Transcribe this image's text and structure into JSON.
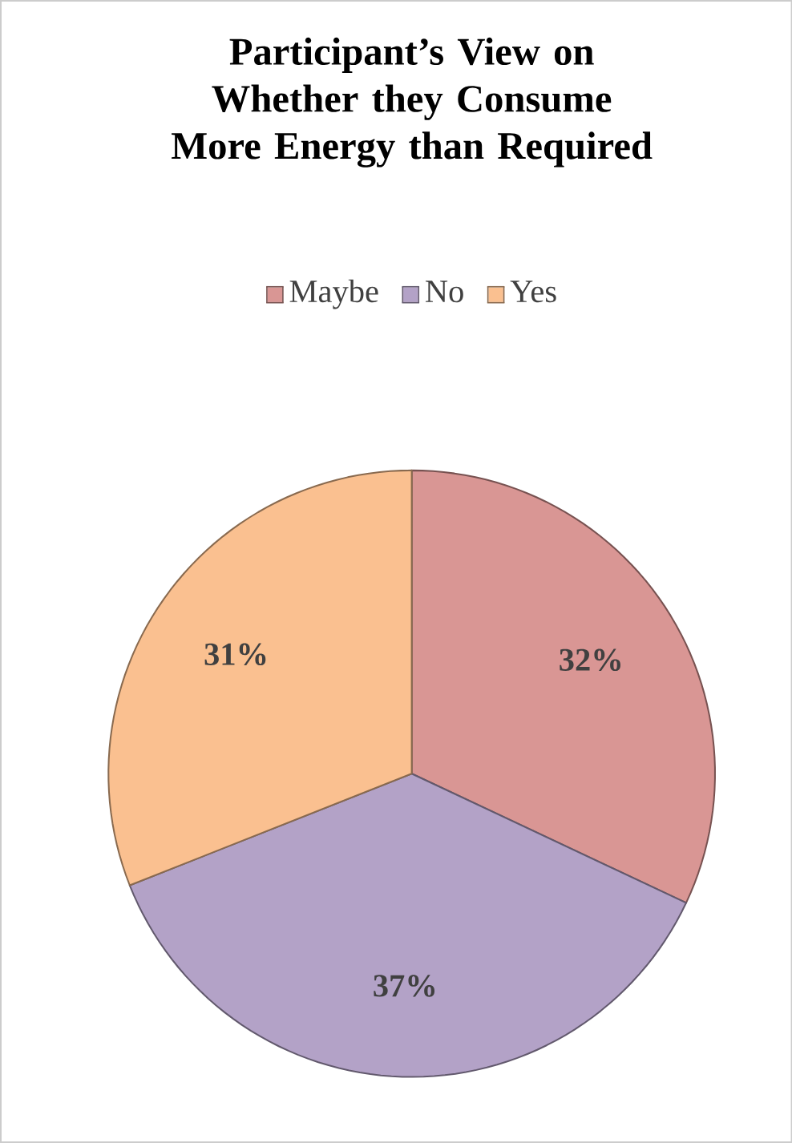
{
  "chart_data": {
    "type": "pie",
    "title": "Participant’s View on Whether they Consume More Energy than Required",
    "categories": [
      "Maybe",
      "No",
      "Yes"
    ],
    "values": [
      32,
      37,
      31
    ],
    "colors": [
      "#d99694",
      "#b3a2c7",
      "#fac090"
    ],
    "value_labels": [
      "32%",
      "37%",
      "31%"
    ],
    "legend": "top"
  }
}
